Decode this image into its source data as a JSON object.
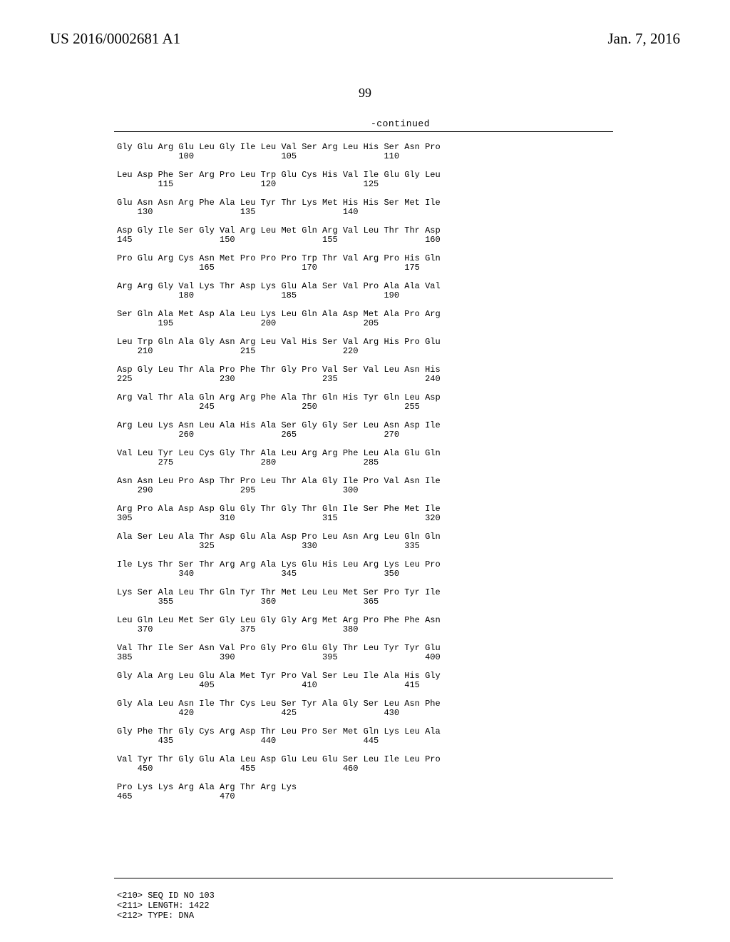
{
  "header": {
    "left": "US 2016/0002681 A1",
    "right": "Jan. 7, 2016",
    "page_number": "99",
    "continued": "-continued"
  },
  "sequence_lines": [
    "Gly Glu Arg Glu Leu Gly Ile Leu Val Ser Arg Leu His Ser Asn Pro",
    "            100                 105                 110",
    "",
    "Leu Asp Phe Ser Arg Pro Leu Trp Glu Cys His Val Ile Glu Gly Leu",
    "        115                 120                 125",
    "",
    "Glu Asn Asn Arg Phe Ala Leu Tyr Thr Lys Met His His Ser Met Ile",
    "    130                 135                 140",
    "",
    "Asp Gly Ile Ser Gly Val Arg Leu Met Gln Arg Val Leu Thr Thr Asp",
    "145                 150                 155                 160",
    "",
    "Pro Glu Arg Cys Asn Met Pro Pro Pro Trp Thr Val Arg Pro His Gln",
    "                165                 170                 175",
    "",
    "Arg Arg Gly Val Lys Thr Asp Lys Glu Ala Ser Val Pro Ala Ala Val",
    "            180                 185                 190",
    "",
    "Ser Gln Ala Met Asp Ala Leu Lys Leu Gln Ala Asp Met Ala Pro Arg",
    "        195                 200                 205",
    "",
    "Leu Trp Gln Ala Gly Asn Arg Leu Val His Ser Val Arg His Pro Glu",
    "    210                 215                 220",
    "",
    "Asp Gly Leu Thr Ala Pro Phe Thr Gly Pro Val Ser Val Leu Asn His",
    "225                 230                 235                 240",
    "",
    "Arg Val Thr Ala Gln Arg Arg Phe Ala Thr Gln His Tyr Gln Leu Asp",
    "                245                 250                 255",
    "",
    "Arg Leu Lys Asn Leu Ala His Ala Ser Gly Gly Ser Leu Asn Asp Ile",
    "            260                 265                 270",
    "",
    "Val Leu Tyr Leu Cys Gly Thr Ala Leu Arg Arg Phe Leu Ala Glu Gln",
    "        275                 280                 285",
    "",
    "Asn Asn Leu Pro Asp Thr Pro Leu Thr Ala Gly Ile Pro Val Asn Ile",
    "    290                 295                 300",
    "",
    "Arg Pro Ala Asp Asp Glu Gly Thr Gly Thr Gln Ile Ser Phe Met Ile",
    "305                 310                 315                 320",
    "",
    "Ala Ser Leu Ala Thr Asp Glu Ala Asp Pro Leu Asn Arg Leu Gln Gln",
    "                325                 330                 335",
    "",
    "Ile Lys Thr Ser Thr Arg Arg Ala Lys Glu His Leu Arg Lys Leu Pro",
    "            340                 345                 350",
    "",
    "Lys Ser Ala Leu Thr Gln Tyr Thr Met Leu Leu Met Ser Pro Tyr Ile",
    "        355                 360                 365",
    "",
    "Leu Gln Leu Met Ser Gly Leu Gly Gly Arg Met Arg Pro Phe Phe Asn",
    "    370                 375                 380",
    "",
    "Val Thr Ile Ser Asn Val Pro Gly Pro Glu Gly Thr Leu Tyr Tyr Glu",
    "385                 390                 395                 400",
    "",
    "Gly Ala Arg Leu Glu Ala Met Tyr Pro Val Ser Leu Ile Ala His Gly",
    "                405                 410                 415",
    "",
    "Gly Ala Leu Asn Ile Thr Cys Leu Ser Tyr Ala Gly Ser Leu Asn Phe",
    "            420                 425                 430",
    "",
    "Gly Phe Thr Gly Cys Arg Asp Thr Leu Pro Ser Met Gln Lys Leu Ala",
    "        435                 440                 445",
    "",
    "Val Tyr Thr Gly Glu Ala Leu Asp Glu Leu Glu Ser Leu Ile Leu Pro",
    "    450                 455                 460",
    "",
    "Pro Lys Lys Arg Ala Arg Thr Arg Lys",
    "465                 470"
  ],
  "meta_lines": [
    "<210> SEQ ID NO 103",
    "<211> LENGTH: 1422",
    "<212> TYPE: DNA"
  ]
}
